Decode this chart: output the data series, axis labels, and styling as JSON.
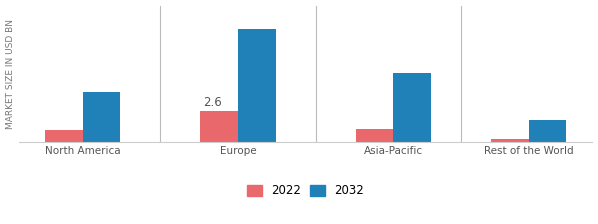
{
  "categories": [
    "North America",
    "Europe",
    "Asia-Pacific",
    "Rest of the World"
  ],
  "values_2022": [
    1.0,
    2.6,
    1.1,
    0.2
  ],
  "values_2032": [
    4.2,
    9.5,
    5.8,
    1.8
  ],
  "color_2022": "#e8686b",
  "color_2032": "#2080b8",
  "ylabel": "MARKET SIZE IN USD BN",
  "annotation_text": "2.6",
  "annotation_bar_index": 1,
  "legend_labels": [
    "2022",
    "2032"
  ],
  "bar_width": 0.28,
  "group_positions": [
    0.0,
    1.15,
    2.3,
    3.3
  ],
  "ylim": [
    0,
    11.5
  ],
  "background_color": "#ffffff",
  "ylabel_fontsize": 6.5,
  "tick_fontsize": 7.5,
  "legend_fontsize": 8.5
}
